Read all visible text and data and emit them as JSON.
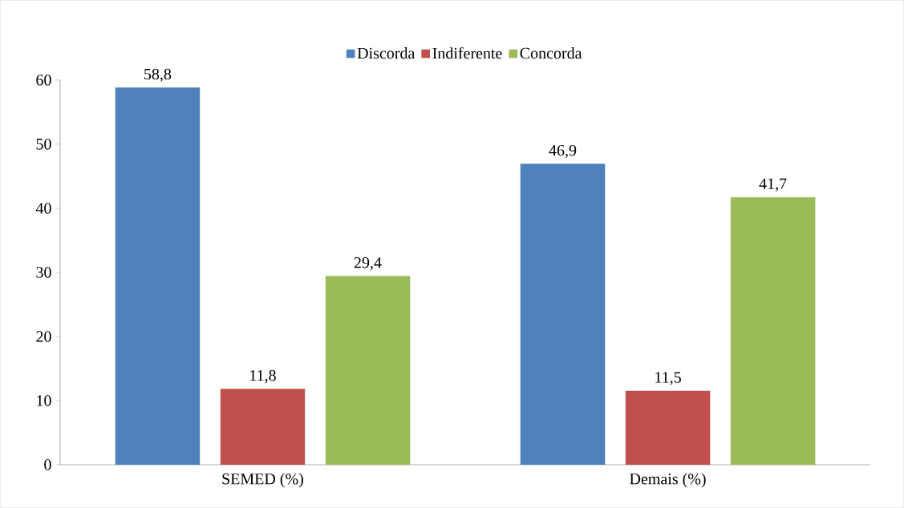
{
  "chart_data": {
    "type": "bar",
    "categories": [
      "SEMED (%)",
      "Demais (%)"
    ],
    "series": [
      {
        "name": "Discorda",
        "color": "#4f81bd",
        "values": [
          58.8,
          46.9
        ],
        "value_labels": [
          "58,8",
          "46,9"
        ]
      },
      {
        "name": "Indiferente",
        "color": "#c0504d",
        "values": [
          11.8,
          11.5
        ],
        "value_labels": [
          "11,8",
          "11,5"
        ]
      },
      {
        "name": "Concorda",
        "color": "#9bbb59",
        "values": [
          29.4,
          41.7
        ],
        "value_labels": [
          "29,4",
          "41,7"
        ]
      }
    ],
    "ylim": [
      0,
      60
    ],
    "yticks": [
      0,
      10,
      20,
      30,
      40,
      50,
      60
    ],
    "grid": false,
    "legend": "top"
  }
}
